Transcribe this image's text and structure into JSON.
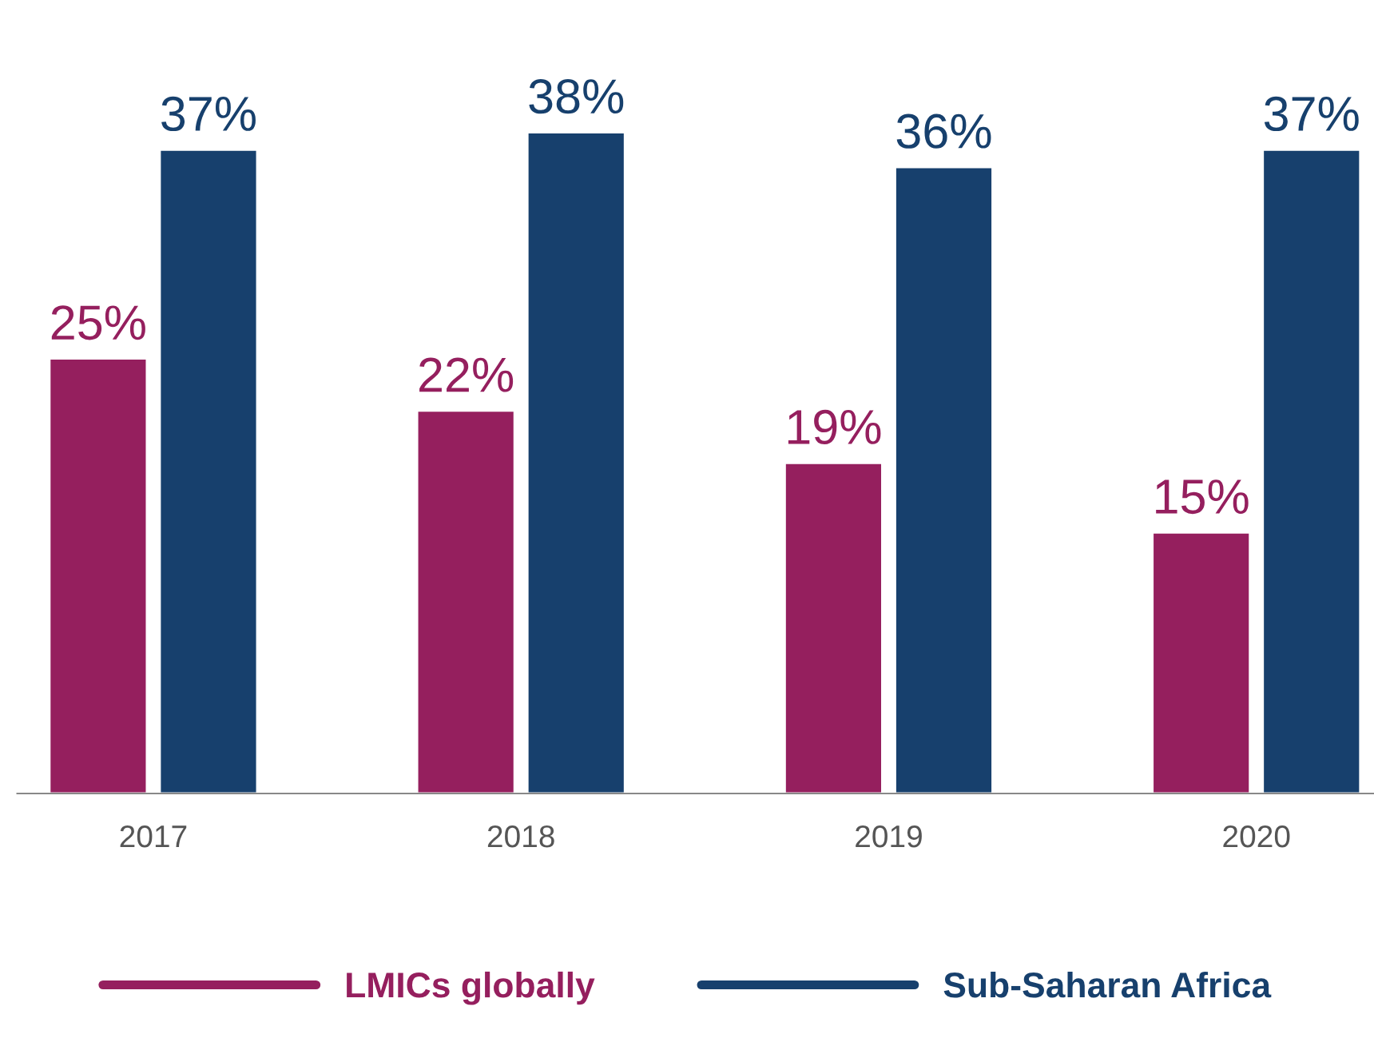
{
  "chart_data": {
    "type": "bar",
    "categories": [
      "2017",
      "2018",
      "2019",
      "2020"
    ],
    "series": [
      {
        "name": "LMICs globally",
        "color": "#951f5e",
        "values": [
          25,
          22,
          19,
          15
        ],
        "value_labels": [
          "25%",
          "22%",
          "19%",
          "15%"
        ]
      },
      {
        "name": "Sub-Saharan Africa",
        "color": "#17406d",
        "values": [
          37,
          38,
          36,
          37
        ],
        "value_labels": [
          "37%",
          "38%",
          "36%",
          "37%"
        ]
      }
    ],
    "legend": "bottom"
  }
}
